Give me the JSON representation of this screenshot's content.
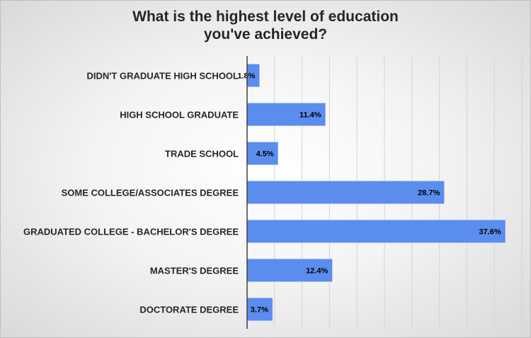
{
  "chart_data": {
    "type": "bar",
    "orientation": "horizontal",
    "title_lines": [
      "What is the highest level of education",
      "you've achieved?"
    ],
    "categories": [
      "DIDN'T GRADUATE HIGH SCHOOL",
      "HIGH SCHOOL GRADUATE",
      "TRADE SCHOOL",
      "SOME COLLEGE/ASSOCIATES DEGREE",
      "GRADUATED COLLEGE - BACHELOR'S DEGREE",
      "MASTER'S DEGREE",
      "DOCTORATE DEGREE"
    ],
    "values": [
      1.8,
      11.4,
      4.5,
      28.7,
      37.6,
      12.4,
      3.7
    ],
    "data_labels": [
      "1.8%",
      "11.4%",
      "4.5%",
      "28.7%",
      "37.6%",
      "12.4%",
      "3.7%"
    ],
    "xlim": [
      0,
      40
    ],
    "grid": true,
    "legend": "none",
    "bar_color": "#5b8def"
  }
}
